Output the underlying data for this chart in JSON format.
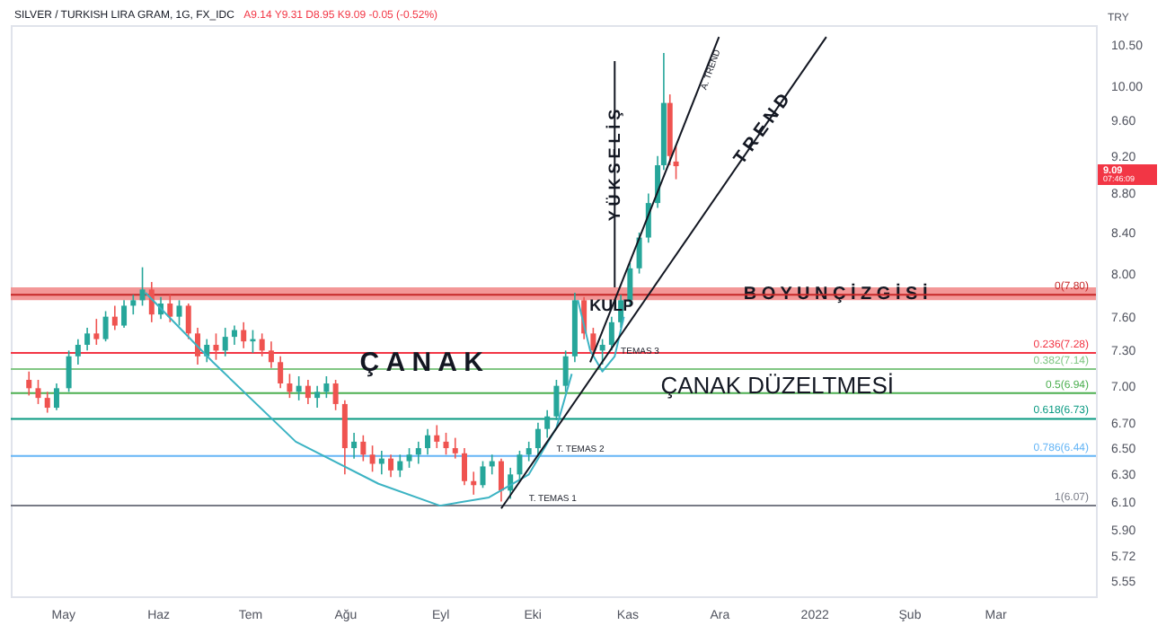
{
  "chart_data": {
    "type": "candlestick",
    "title": "SILVER / TURKISH LIRA GRAM, 1G, FX_IDC",
    "subtitle": "A9.14 Y9.31 D8.95 K9.09 -0.05 (-0.52%)",
    "ylabel": "TRY",
    "log": true,
    "grid": false,
    "xlim": [
      "2021-04-17",
      "2022-03-31"
    ],
    "xticks": [
      {
        "value": "2021-05-01",
        "label": "May"
      },
      {
        "value": "2021-06-01",
        "label": "Haz"
      },
      {
        "value": "2021-07-01",
        "label": "Tem"
      },
      {
        "value": "2021-08-01",
        "label": "Ağu"
      },
      {
        "value": "2021-09-01",
        "label": "Eyl"
      },
      {
        "value": "2021-10-01",
        "label": "Eki"
      },
      {
        "value": "2021-11-01",
        "label": "Kas"
      },
      {
        "value": "2021-12-01",
        "label": "Ara"
      },
      {
        "value": "2022-01-01",
        "label": "2022"
      },
      {
        "value": "2022-02-01",
        "label": "Şub"
      },
      {
        "value": "2022-03-01",
        "label": "Mar"
      }
    ],
    "ylim": [
      5.45,
      10.75
    ],
    "yticks": [
      {
        "value": 10.5,
        "label": "10.50"
      },
      {
        "value": 10.0,
        "label": "10.00"
      },
      {
        "value": 9.6,
        "label": "9.60"
      },
      {
        "value": 9.2,
        "label": "9.20"
      },
      {
        "value": 8.8,
        "label": "8.80"
      },
      {
        "value": 8.4,
        "label": "8.40"
      },
      {
        "value": 8.0,
        "label": "8.00"
      },
      {
        "value": 7.6,
        "label": "7.60"
      },
      {
        "value": 7.3,
        "label": "7.30"
      },
      {
        "value": 7.0,
        "label": "7.00"
      },
      {
        "value": 6.7,
        "label": "6.70"
      },
      {
        "value": 6.5,
        "label": "6.50"
      },
      {
        "value": 6.3,
        "label": "6.30"
      },
      {
        "value": 6.1,
        "label": "6.10"
      },
      {
        "value": 5.9,
        "label": "5.90"
      },
      {
        "value": 5.72,
        "label": "5.72"
      },
      {
        "value": 5.55,
        "label": "5.55"
      }
    ],
    "x": [
      "2021-04-20",
      "2021-04-23",
      "2021-04-26",
      "2021-04-29",
      "2021-05-03",
      "2021-05-06",
      "2021-05-09",
      "2021-05-12",
      "2021-05-15",
      "2021-05-18",
      "2021-05-21",
      "2021-05-24",
      "2021-05-27",
      "2021-05-30",
      "2021-06-02",
      "2021-06-05",
      "2021-06-08",
      "2021-06-11",
      "2021-06-14",
      "2021-06-17",
      "2021-06-20",
      "2021-06-23",
      "2021-06-26",
      "2021-06-29",
      "2021-07-02",
      "2021-07-05",
      "2021-07-08",
      "2021-07-11",
      "2021-07-14",
      "2021-07-17",
      "2021-07-20",
      "2021-07-23",
      "2021-07-26",
      "2021-07-29",
      "2021-08-01",
      "2021-08-04",
      "2021-08-07",
      "2021-08-10",
      "2021-08-13",
      "2021-08-16",
      "2021-08-19",
      "2021-08-22",
      "2021-08-25",
      "2021-08-28",
      "2021-08-31",
      "2021-09-03",
      "2021-09-06",
      "2021-09-09",
      "2021-09-12",
      "2021-09-15",
      "2021-09-18",
      "2021-09-21",
      "2021-09-24",
      "2021-09-27",
      "2021-09-30",
      "2021-10-03",
      "2021-10-06",
      "2021-10-09",
      "2021-10-12",
      "2021-10-15",
      "2021-10-18",
      "2021-10-21",
      "2021-10-24",
      "2021-10-27",
      "2021-10-30",
      "2021-11-02",
      "2021-11-05",
      "2021-11-08",
      "2021-11-11",
      "2021-11-13",
      "2021-11-15",
      "2021-11-17"
    ],
    "ohlc": [
      [
        7.05,
        7.12,
        6.92,
        6.98
      ],
      [
        6.98,
        7.05,
        6.85,
        6.9
      ],
      [
        6.9,
        6.95,
        6.78,
        6.82
      ],
      [
        6.82,
        7.02,
        6.8,
        6.98
      ],
      [
        6.98,
        7.3,
        6.95,
        7.25
      ],
      [
        7.25,
        7.4,
        7.18,
        7.35
      ],
      [
        7.35,
        7.5,
        7.3,
        7.45
      ],
      [
        7.45,
        7.58,
        7.35,
        7.4
      ],
      [
        7.4,
        7.65,
        7.38,
        7.6
      ],
      [
        7.6,
        7.7,
        7.48,
        7.52
      ],
      [
        7.52,
        7.75,
        7.5,
        7.7
      ],
      [
        7.7,
        7.8,
        7.62,
        7.75
      ],
      [
        7.75,
        8.06,
        7.7,
        7.85
      ],
      [
        7.85,
        7.92,
        7.55,
        7.62
      ],
      [
        7.62,
        7.78,
        7.58,
        7.72
      ],
      [
        7.72,
        7.8,
        7.55,
        7.6
      ],
      [
        7.6,
        7.75,
        7.52,
        7.7
      ],
      [
        7.7,
        7.72,
        7.4,
        7.45
      ],
      [
        7.45,
        7.5,
        7.18,
        7.25
      ],
      [
        7.25,
        7.4,
        7.2,
        7.35
      ],
      [
        7.35,
        7.45,
        7.22,
        7.3
      ],
      [
        7.3,
        7.5,
        7.25,
        7.42
      ],
      [
        7.42,
        7.52,
        7.35,
        7.48
      ],
      [
        7.48,
        7.55,
        7.32,
        7.38
      ],
      [
        7.38,
        7.48,
        7.28,
        7.4
      ],
      [
        7.4,
        7.45,
        7.25,
        7.3
      ],
      [
        7.3,
        7.38,
        7.15,
        7.2
      ],
      [
        7.2,
        7.25,
        6.98,
        7.02
      ],
      [
        7.02,
        7.1,
        6.9,
        6.95
      ],
      [
        6.95,
        7.08,
        6.88,
        7.0
      ],
      [
        7.0,
        7.05,
        6.85,
        6.9
      ],
      [
        6.9,
        7.0,
        6.82,
        6.95
      ],
      [
        6.95,
        7.08,
        6.9,
        7.02
      ],
      [
        7.02,
        7.05,
        6.8,
        6.85
      ],
      [
        6.85,
        6.88,
        6.3,
        6.5
      ],
      [
        6.5,
        6.62,
        6.42,
        6.55
      ],
      [
        6.55,
        6.6,
        6.4,
        6.45
      ],
      [
        6.45,
        6.52,
        6.32,
        6.38
      ],
      [
        6.38,
        6.48,
        6.3,
        6.42
      ],
      [
        6.42,
        6.45,
        6.28,
        6.33
      ],
      [
        6.33,
        6.45,
        6.28,
        6.4
      ],
      [
        6.4,
        6.5,
        6.35,
        6.45
      ],
      [
        6.45,
        6.55,
        6.38,
        6.5
      ],
      [
        6.5,
        6.65,
        6.45,
        6.6
      ],
      [
        6.6,
        6.68,
        6.5,
        6.55
      ],
      [
        6.55,
        6.62,
        6.45,
        6.5
      ],
      [
        6.5,
        6.58,
        6.42,
        6.46
      ],
      [
        6.46,
        6.5,
        6.22,
        6.25
      ],
      [
        6.25,
        6.32,
        6.15,
        6.22
      ],
      [
        6.22,
        6.4,
        6.2,
        6.36
      ],
      [
        6.36,
        6.45,
        6.3,
        6.4
      ],
      [
        6.4,
        6.42,
        6.1,
        6.18
      ],
      [
        6.18,
        6.35,
        6.12,
        6.3
      ],
      [
        6.3,
        6.48,
        6.25,
        6.45
      ],
      [
        6.45,
        6.55,
        6.4,
        6.5
      ],
      [
        6.5,
        6.7,
        6.45,
        6.65
      ],
      [
        6.65,
        6.8,
        6.58,
        6.75
      ],
      [
        6.75,
        7.05,
        6.72,
        7.0
      ],
      [
        7.0,
        7.3,
        6.95,
        7.25
      ],
      [
        7.25,
        7.82,
        7.2,
        7.75
      ],
      [
        7.75,
        7.78,
        7.4,
        7.45
      ],
      [
        7.45,
        7.5,
        7.25,
        7.3
      ],
      [
        7.3,
        7.4,
        7.18,
        7.35
      ],
      [
        7.35,
        7.6,
        7.3,
        7.55
      ],
      [
        7.55,
        7.8,
        7.5,
        7.75
      ],
      [
        7.75,
        8.1,
        7.7,
        8.05
      ],
      [
        8.05,
        8.4,
        8.0,
        8.35
      ],
      [
        8.35,
        8.8,
        8.3,
        8.7
      ],
      [
        8.7,
        9.2,
        8.65,
        9.1
      ],
      [
        9.1,
        10.4,
        9.05,
        9.8
      ],
      [
        9.8,
        9.9,
        9.1,
        9.2
      ],
      [
        9.14,
        9.31,
        8.95,
        9.09
      ]
    ],
    "colors": [
      "#ef5350",
      "#ef5350",
      "#ef5350",
      "#26a69a",
      "#26a69a",
      "#26a69a",
      "#26a69a",
      "#ef5350",
      "#26a69a",
      "#ef5350",
      "#26a69a",
      "#26a69a",
      "#26a69a",
      "#ef5350",
      "#26a69a",
      "#ef5350",
      "#26a69a",
      "#ef5350",
      "#ef5350",
      "#26a69a",
      "#ef5350",
      "#26a69a",
      "#26a69a",
      "#ef5350",
      "#26a69a",
      "#ef5350",
      "#ef5350",
      "#ef5350",
      "#ef5350",
      "#26a69a",
      "#ef5350",
      "#26a69a",
      "#26a69a",
      "#ef5350",
      "#ef5350",
      "#26a69a",
      "#ef5350",
      "#ef5350",
      "#26a69a",
      "#ef5350",
      "#26a69a",
      "#26a69a",
      "#26a69a",
      "#26a69a",
      "#ef5350",
      "#ef5350",
      "#ef5350",
      "#ef5350",
      "#ef5350",
      "#26a69a",
      "#26a69a",
      "#ef5350",
      "#26a69a",
      "#26a69a",
      "#26a69a",
      "#26a69a",
      "#26a69a",
      "#26a69a",
      "#26a69a",
      "#26a69a",
      "#ef5350",
      "#ef5350",
      "#26a69a",
      "#26a69a",
      "#26a69a",
      "#26a69a",
      "#26a69a",
      "#26a69a",
      "#26a69a",
      "#26a69a",
      "#ef5350",
      "#ef5350"
    ],
    "series": [
      {
        "type": "line",
        "color": "#3bb3c3",
        "x": [
          "2021-05-28",
          "2021-06-19",
          "2021-07-16",
          "2021-08-12",
          "2021-09-01",
          "2021-09-17",
          "2021-09-30",
          "2021-10-09",
          "2021-10-14"
        ],
        "values": [
          7.82,
          7.2,
          6.55,
          6.23,
          6.07,
          6.13,
          6.3,
          6.66,
          7.1
        ]
      },
      {
        "type": "line",
        "color": "#3bb3c3",
        "x": [
          "2021-10-16",
          "2021-10-20",
          "2021-10-24",
          "2021-10-28",
          "2021-10-31"
        ],
        "values": [
          7.75,
          7.3,
          7.12,
          7.25,
          7.6
        ]
      },
      {
        "type": "line",
        "color": "#131722",
        "x": [
          "2021-09-21",
          "2022-01-05"
        ],
        "values": [
          6.05,
          10.6
        ]
      },
      {
        "type": "line",
        "color": "#131722",
        "x": [
          "2021-10-20",
          "2021-12-01"
        ],
        "values": [
          7.2,
          10.6
        ]
      },
      {
        "type": "line",
        "color": "#131722",
        "x": [
          "2021-10-28",
          "2021-10-28"
        ],
        "values": [
          7.87,
          10.3
        ]
      }
    ],
    "bands": [
      {
        "axis": "y",
        "from": 7.75,
        "to": 7.87,
        "label": "B O Y U N  Ç İ Z G İ S İ",
        "color": "#f28c8c"
      }
    ],
    "ref_lines": [
      {
        "axis": "y",
        "value": 7.8,
        "label": "0(7.80)",
        "color": "#c62828"
      },
      {
        "axis": "y",
        "value": 7.28,
        "label": "0.236(7.28)",
        "color": "#f23645"
      },
      {
        "axis": "y",
        "value": 7.14,
        "label": "0.382(7.14)",
        "color": "#81c784"
      },
      {
        "axis": "y",
        "value": 6.94,
        "label": "0.5(6.94)",
        "color": "#4caf50"
      },
      {
        "axis": "y",
        "value": 6.73,
        "label": "0.618(6.73)",
        "color": "#089981"
      },
      {
        "axis": "y",
        "value": 6.44,
        "label": "0.786(6.44)",
        "color": "#64b5f6"
      },
      {
        "axis": "y",
        "value": 6.07,
        "label": "1(6.07)",
        "color": "#787b86"
      }
    ],
    "annotations": [
      {
        "text": "Ç A N A K",
        "x": "2021-08-26",
        "y": 7.2
      },
      {
        "text": "KULP",
        "x": "2021-10-27",
        "y": 7.7
      },
      {
        "text": "TEMAS 3",
        "x": "2021-10-30",
        "y": 7.3
      },
      {
        "text": "T. TEMAS 2",
        "x": "2021-10-09",
        "y": 6.5
      },
      {
        "text": "T. TEMAS 1",
        "x": "2021-09-30",
        "y": 6.13
      },
      {
        "text": "ÇANAK DÜZELTMESİ",
        "x": "2021-12-20",
        "y": 7.0
      },
      {
        "text": "T R E N D",
        "x": "2021-12-15",
        "y": 9.5
      },
      {
        "text": "A. TREND",
        "x": "2021-11-28",
        "y": 10.2
      },
      {
        "text": "Y Ü K S E L İ Ş",
        "x": "2021-10-28",
        "y": 9.1
      },
      "9.09",
      "07:46:09"
    ]
  }
}
